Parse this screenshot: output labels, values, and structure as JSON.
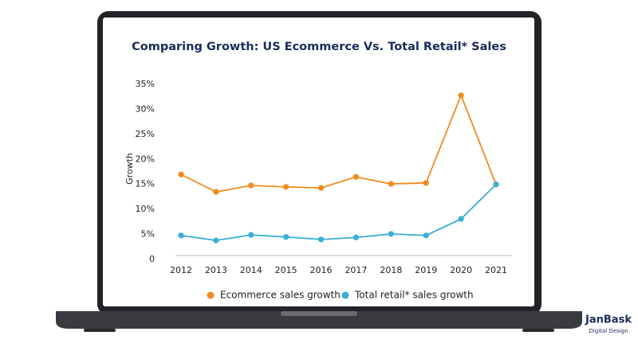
{
  "chart_data": {
    "type": "line",
    "title": "Comparing Growth: US Ecommerce Vs. Total Retail* Sales",
    "y_label": "Growth",
    "categories": [
      "2012",
      "2013",
      "2014",
      "2015",
      "2016",
      "2017",
      "2018",
      "2019",
      "2020",
      "2021"
    ],
    "series": [
      {
        "name": "Ecommerce sales growth",
        "color": "#f08c1e",
        "values": [
          17.0,
          13.5,
          14.8,
          14.5,
          14.3,
          16.5,
          15.1,
          15.3,
          32.8,
          15.0
        ]
      },
      {
        "name": "Total retail* sales growth",
        "color": "#3aaed4",
        "values": [
          4.8,
          3.8,
          4.9,
          4.5,
          4.0,
          4.4,
          5.1,
          4.8,
          8.1,
          15.0
        ]
      }
    ],
    "ylim": [
      0,
      35
    ],
    "yticks": [
      0,
      {
        "value": 5,
        "label": "5%"
      },
      {
        "value": 10,
        "label": "10%"
      },
      {
        "value": 15,
        "label": "15%"
      },
      {
        "value": 20,
        "label": "20%"
      },
      {
        "value": 25,
        "label": "25%"
      },
      {
        "value": 30,
        "label": "30%"
      },
      {
        "value": 35,
        "label": "35%"
      }
    ],
    "legend": "bottom",
    "grid": false
  },
  "brand": {
    "name": "JanBask",
    "tagline": "Digital Design"
  }
}
